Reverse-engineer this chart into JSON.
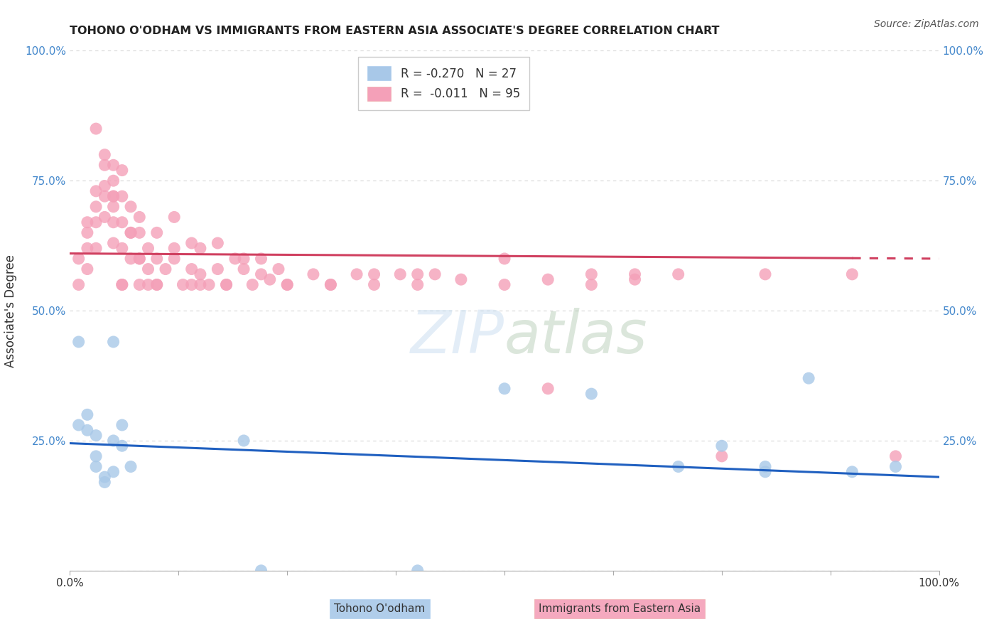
{
  "title": "TOHONO O'ODHAM VS IMMIGRANTS FROM EASTERN ASIA ASSOCIATE'S DEGREE CORRELATION CHART",
  "source": "Source: ZipAtlas.com",
  "ylabel": "Associate's Degree",
  "blue_color": "#a8c8e8",
  "pink_color": "#f4a0b8",
  "trendline_blue_color": "#2060c0",
  "trendline_pink_color": "#d04060",
  "background_color": "#ffffff",
  "grid_color": "#cccccc",
  "watermark": "ZIPatlas",
  "legend_blue_label": "R = -0.270   N = 27",
  "legend_pink_label": "R =  -0.011   N = 95",
  "xlim": [
    0,
    100
  ],
  "ylim": [
    0,
    100
  ],
  "blue_trendline_start_y": 24.5,
  "blue_trendline_end_y": 18.0,
  "pink_trendline_start_y": 61.0,
  "pink_trendline_end_y": 60.0,
  "blue_x": [
    1,
    2,
    2,
    3,
    3,
    4,
    4,
    5,
    5,
    6,
    6,
    7,
    1,
    3,
    5,
    20,
    50,
    60,
    70,
    80,
    85,
    90,
    95,
    22,
    40,
    75,
    80
  ],
  "blue_y": [
    28,
    30,
    27,
    26,
    20,
    18,
    17,
    19,
    44,
    28,
    24,
    20,
    44,
    22,
    25,
    25,
    35,
    34,
    20,
    20,
    37,
    19,
    20,
    0,
    0,
    24,
    19
  ],
  "pink_x": [
    1,
    1,
    2,
    2,
    2,
    2,
    3,
    3,
    3,
    3,
    4,
    4,
    4,
    4,
    5,
    5,
    5,
    5,
    5,
    5,
    6,
    6,
    6,
    6,
    6,
    7,
    7,
    7,
    8,
    8,
    8,
    8,
    9,
    9,
    10,
    10,
    10,
    11,
    12,
    12,
    13,
    14,
    14,
    15,
    15,
    16,
    17,
    17,
    18,
    19,
    20,
    21,
    22,
    23,
    24,
    25,
    28,
    30,
    33,
    35,
    38,
    40,
    42,
    45,
    50,
    55,
    60,
    65,
    70,
    75,
    80,
    90,
    95,
    3,
    4,
    5,
    6,
    7,
    8,
    9,
    10,
    12,
    14,
    15,
    18,
    20,
    22,
    25,
    30,
    35,
    40,
    50,
    55,
    60,
    65
  ],
  "pink_y": [
    55,
    60,
    58,
    62,
    65,
    67,
    62,
    67,
    70,
    73,
    68,
    72,
    74,
    78,
    63,
    67,
    70,
    72,
    75,
    78,
    55,
    62,
    67,
    72,
    77,
    60,
    65,
    70,
    55,
    60,
    65,
    68,
    55,
    62,
    55,
    60,
    65,
    58,
    62,
    68,
    55,
    58,
    63,
    55,
    62,
    55,
    58,
    63,
    55,
    60,
    58,
    55,
    60,
    56,
    58,
    55,
    57,
    55,
    57,
    55,
    57,
    55,
    57,
    56,
    60,
    35,
    57,
    57,
    57,
    22,
    57,
    57,
    22,
    85,
    80,
    72,
    55,
    65,
    60,
    58,
    55,
    60,
    55,
    57,
    55,
    60,
    57,
    55,
    55,
    57,
    57,
    55,
    56,
    55,
    56
  ]
}
